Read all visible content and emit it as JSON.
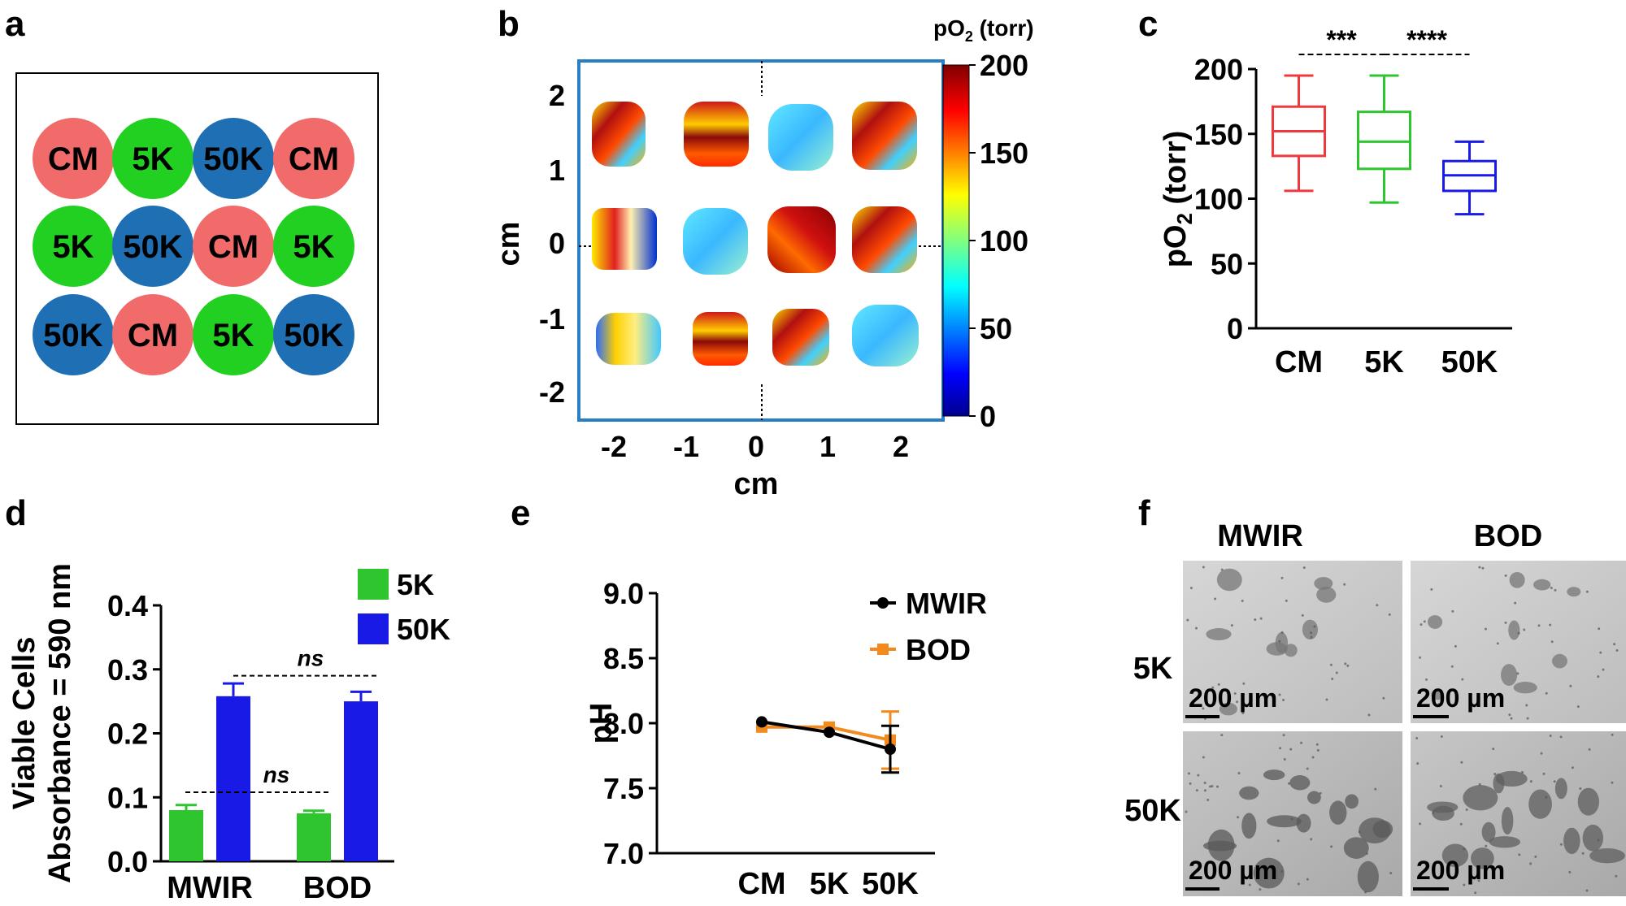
{
  "panels": {
    "a": {
      "label": "a",
      "wells": [
        {
          "text": "CM",
          "color": "#f26b6b"
        },
        {
          "text": "5K",
          "color": "#22d022"
        },
        {
          "text": "50K",
          "color": "#1f6fb5"
        },
        {
          "text": "CM",
          "color": "#f26b6b"
        },
        {
          "text": "5K",
          "color": "#22d022"
        },
        {
          "text": "50K",
          "color": "#1f6fb5"
        },
        {
          "text": "CM",
          "color": "#f26b6b"
        },
        {
          "text": "5K",
          "color": "#22d022"
        },
        {
          "text": "50K",
          "color": "#1f6fb5"
        },
        {
          "text": "CM",
          "color": "#f26b6b"
        },
        {
          "text": "5K",
          "color": "#22d022"
        },
        {
          "text": "50K",
          "color": "#1f6fb5"
        }
      ]
    },
    "b": {
      "label": "b",
      "xlabel": "cm",
      "ylabel": "cm",
      "xticks": [
        "-2",
        "-1",
        "0",
        "1",
        "2"
      ],
      "yticks": [
        "2",
        "1",
        "0",
        "-1",
        "-2"
      ],
      "colorbar_title_main": "pO",
      "colorbar_title_sub": "2",
      "colorbar_title_rest": " (torr)",
      "colorbar_ticks": [
        "200",
        "150",
        "100",
        "50",
        "0"
      ],
      "frame_color": "#2a7fc4"
    },
    "f": {
      "label": "f",
      "col_headers": [
        "MWIR",
        "BOD"
      ],
      "row_headers": [
        "5K",
        "50K"
      ],
      "scale_bar_text": "200 µm"
    }
  },
  "chart_data": [
    {
      "panel": "c",
      "type": "box",
      "categories": [
        "CM",
        "5K",
        "50K"
      ],
      "colors": [
        "#f0393f",
        "#2ec52e",
        "#1a1ae6"
      ],
      "boxes": [
        {
          "min": 106,
          "q1": 133,
          "median": 152,
          "q3": 171,
          "max": 195
        },
        {
          "min": 97,
          "q1": 123,
          "median": 144,
          "q3": 167,
          "max": 195
        },
        {
          "min": 88,
          "q1": 106,
          "median": 118,
          "q3": 129,
          "max": 144
        }
      ],
      "ylabel_main": "pO",
      "ylabel_sub": "2",
      "ylabel_rest": " (torr)",
      "ylim": [
        0,
        200
      ],
      "yticks": [
        "0",
        "50",
        "100",
        "150",
        "200"
      ],
      "significance": [
        {
          "from": "CM",
          "to": "5K",
          "text": "***"
        },
        {
          "from": "5K",
          "to": "50K",
          "text": "****"
        }
      ]
    },
    {
      "panel": "d",
      "type": "bar",
      "categories": [
        "MWIR",
        "BOD"
      ],
      "series": [
        {
          "name": "5K",
          "color": "#2ec52e",
          "values": [
            0.08,
            0.075
          ],
          "errors": [
            0.008,
            0.004
          ]
        },
        {
          "name": "50K",
          "color": "#1a1ae6",
          "values": [
            0.258,
            0.25
          ],
          "errors": [
            0.02,
            0.015
          ]
        }
      ],
      "ylabel_line1": "Viable Cells",
      "ylabel_line2": "Absorbance = 590 nm",
      "ylim": [
        0,
        0.4
      ],
      "yticks": [
        "0.0",
        "0.1",
        "0.2",
        "0.3",
        "0.4"
      ],
      "significance": [
        {
          "text": "ns",
          "y": 0.29
        },
        {
          "text": "ns",
          "y": 0.108
        }
      ]
    },
    {
      "panel": "e",
      "type": "line",
      "categories": [
        "CM",
        "5K",
        "50K"
      ],
      "series": [
        {
          "name": "MWIR",
          "color": "#000000",
          "values": [
            8.01,
            7.93,
            7.8
          ],
          "errors": [
            0,
            0,
            0.18
          ]
        },
        {
          "name": "BOD",
          "color": "#f28a1e",
          "values": [
            7.97,
            7.97,
            7.87
          ],
          "errors": [
            0,
            0,
            0.22
          ]
        }
      ],
      "ylabel": "pH",
      "ylim": [
        7.0,
        9.0
      ],
      "yticks": [
        "7.0",
        "7.5",
        "8.0",
        "8.5",
        "9.0"
      ]
    }
  ]
}
